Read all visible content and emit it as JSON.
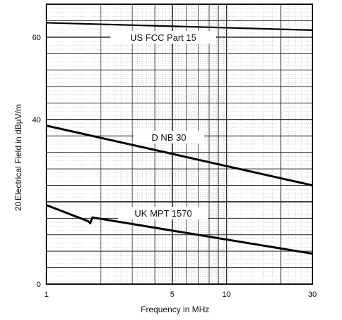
{
  "chart_data": {
    "type": "line",
    "title": "",
    "xlabel": "Frequency in MHz",
    "ylabel": "Electrical Field in dBµV/m",
    "ylabel_prefix": "20",
    "x_scale": "log",
    "xlim": [
      1,
      30
    ],
    "ylim": [
      0,
      68
    ],
    "x_ticks": [
      1,
      5,
      10,
      30
    ],
    "x_tick_labels": [
      "1",
      "5",
      "10",
      "30"
    ],
    "y_ticks": [
      0,
      40,
      60
    ],
    "y_tick_labels": [
      "0",
      "40",
      "60"
    ],
    "grid": true,
    "legend": "none",
    "series": [
      {
        "name": "US FCC Part 15",
        "x": [
          1,
          30
        ],
        "y": [
          63.5,
          61.7
        ]
      },
      {
        "name": "D NB 30",
        "x": [
          1,
          30
        ],
        "y": [
          38.5,
          24
        ]
      },
      {
        "name": "UK MPT 1570",
        "x": [
          1,
          1.7,
          1.75,
          1.8,
          30
        ],
        "y": [
          19.2,
          15.3,
          14.8,
          16.2,
          7.4
        ]
      }
    ]
  }
}
